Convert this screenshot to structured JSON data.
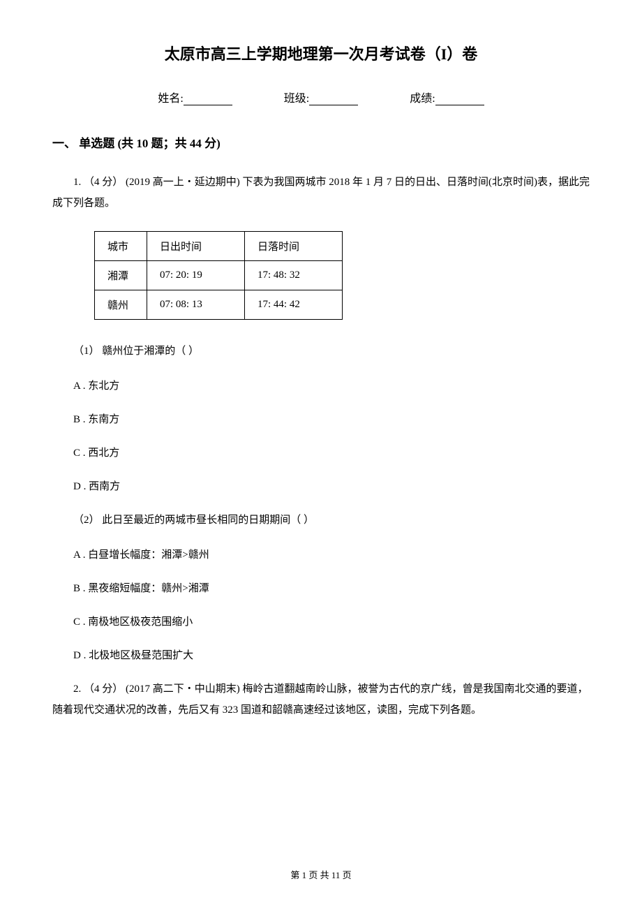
{
  "title": "太原市高三上学期地理第一次月考试卷（I）卷",
  "form": {
    "name_label": "姓名:",
    "class_label": "班级:",
    "score_label": "成绩:"
  },
  "section": {
    "header": "一、 单选题 (共 10 题；共 44 分)"
  },
  "q1": {
    "text": "1. （4 分） (2019 高一上・延边期中) 下表为我国两城市 2018 年 1 月 7 日的日出、日落时间(北京时间)表，据此完成下列各题。",
    "table": {
      "header": {
        "col1": "城市",
        "col2": "日出时间",
        "col3": "日落时间"
      },
      "rows": [
        {
          "col1": "湘潭",
          "col2": "07: 20: 19",
          "col3": "17: 48: 32"
        },
        {
          "col1": "赣州",
          "col2": "07: 08: 13",
          "col3": "17: 44: 42"
        }
      ]
    },
    "sub1": {
      "text": "（1） 赣州位于湘潭的（    ）",
      "options": {
        "a": "A . 东北方",
        "b": "B . 东南方",
        "c": "C . 西北方",
        "d": "D . 西南方"
      }
    },
    "sub2": {
      "text": "（2） 此日至最近的两城市昼长相同的日期期间（    ）",
      "options": {
        "a": "A . 白昼增长幅度：湘潭>赣州",
        "b": "B . 黑夜缩短幅度：赣州>湘潭",
        "c": "C . 南极地区极夜范围缩小",
        "d": "D . 北极地区极昼范围扩大"
      }
    }
  },
  "q2": {
    "text": "2. （4 分） (2017 高二下・中山期末) 梅岭古道翻越南岭山脉，被誉为古代的京广线，曾是我国南北交通的要道，随着现代交通状况的改善，先后又有 323 国道和韶赣高速经过该地区，读图，完成下列各题。"
  },
  "footer": "第 1 页 共 11 页"
}
